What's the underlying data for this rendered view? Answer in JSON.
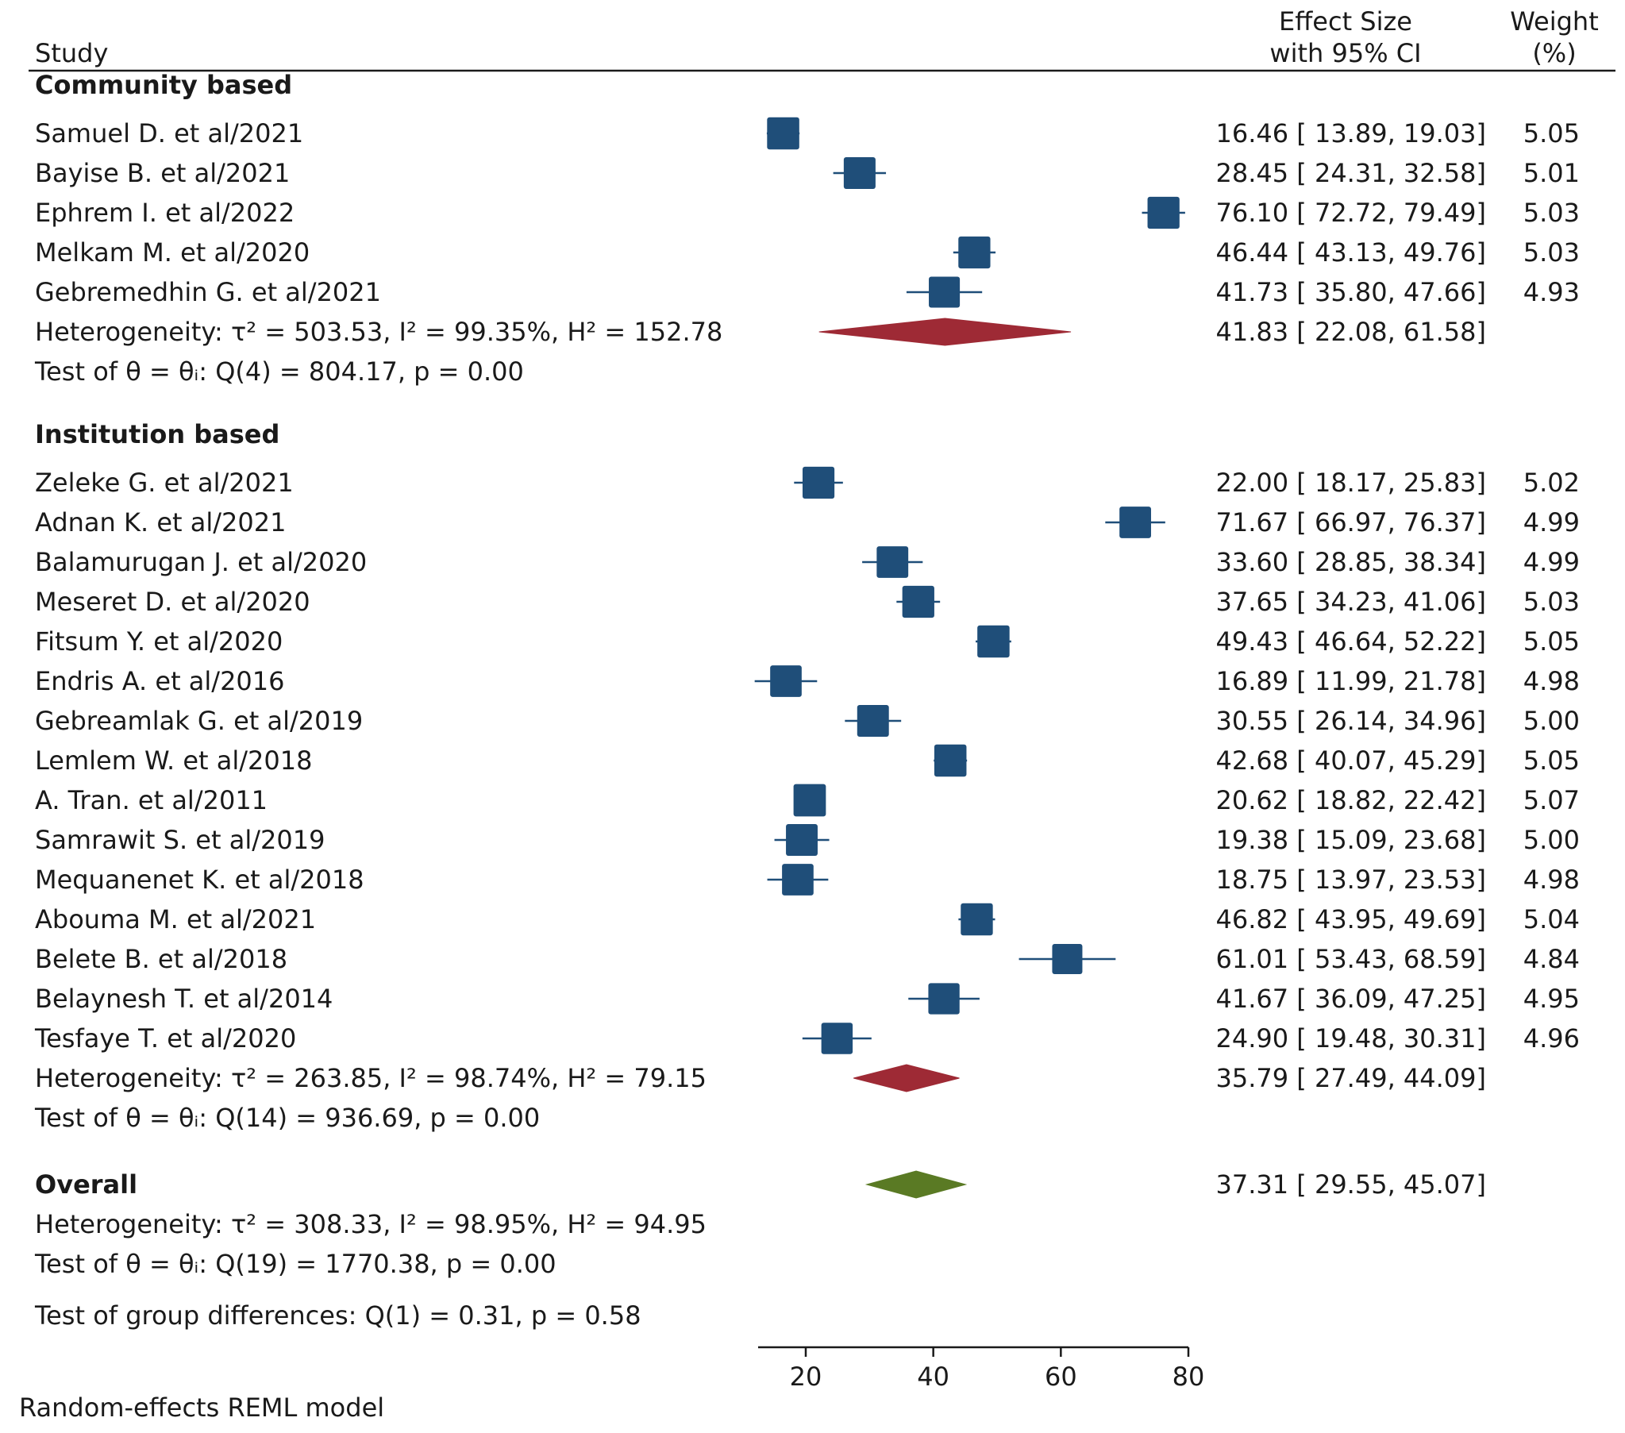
{
  "header": {
    "study": "Study",
    "effect_line1": "Effect Size",
    "effect_line2": "with 95% CI",
    "weight_line1": "Weight",
    "weight_line2": "(%)"
  },
  "colors": {
    "study_marker": "#1f4e79",
    "subgroup_diamond": "#9e2a35",
    "overall_diamond": "#5a7a24",
    "text": "#1a1a1a"
  },
  "footer": "Random-effects REML model",
  "chart_data": {
    "type": "forest",
    "xlim": [
      13,
      80
    ],
    "xticks": [
      20,
      40,
      60,
      80
    ],
    "groups": [
      {
        "name": "Community based",
        "studies": [
          {
            "study": "Samuel D. et al/2021",
            "es": 16.46,
            "lo": 13.89,
            "hi": 19.03,
            "weight": "5.05"
          },
          {
            "study": "Bayise B. et al/2021",
            "es": 28.45,
            "lo": 24.31,
            "hi": 32.58,
            "weight": "5.01"
          },
          {
            "study": "Ephrem I. et al/2022",
            "es": 76.1,
            "lo": 72.72,
            "hi": 79.49,
            "weight": "5.03"
          },
          {
            "study": "Melkam M. et al/2020",
            "es": 46.44,
            "lo": 43.13,
            "hi": 49.76,
            "weight": "5.03"
          },
          {
            "study": "Gebremedhin G. et al/2021",
            "es": 41.73,
            "lo": 35.8,
            "hi": 47.66,
            "weight": "4.93"
          }
        ],
        "pooled": {
          "es": 41.83,
          "lo": 22.08,
          "hi": 61.58
        },
        "heterogeneity": "Heterogeneity: τ² = 503.53, I² = 99.35%, H² = 152.78",
        "test": "Test of θ = θᵢ: Q(4) = 804.17, p = 0.00"
      },
      {
        "name": "Institution based",
        "studies": [
          {
            "study": "Zeleke G. et al/2021",
            "es": 22.0,
            "lo": 18.17,
            "hi": 25.83,
            "weight": "5.02"
          },
          {
            "study": "Adnan K. et al/2021",
            "es": 71.67,
            "lo": 66.97,
            "hi": 76.37,
            "weight": "4.99"
          },
          {
            "study": "Balamurugan J. et al/2020",
            "es": 33.6,
            "lo": 28.85,
            "hi": 38.34,
            "weight": "4.99"
          },
          {
            "study": "Meseret D. et al/2020",
            "es": 37.65,
            "lo": 34.23,
            "hi": 41.06,
            "weight": "5.03"
          },
          {
            "study": "Fitsum Y. et al/2020",
            "es": 49.43,
            "lo": 46.64,
            "hi": 52.22,
            "weight": "5.05"
          },
          {
            "study": "Endris A. et al/2016",
            "es": 16.89,
            "lo": 11.99,
            "hi": 21.78,
            "weight": "4.98"
          },
          {
            "study": "Gebreamlak G. et al/2019",
            "es": 30.55,
            "lo": 26.14,
            "hi": 34.96,
            "weight": "5.00"
          },
          {
            "study": "Lemlem W. et al/2018",
            "es": 42.68,
            "lo": 40.07,
            "hi": 45.29,
            "weight": "5.05"
          },
          {
            "study": "A. Tran. et al/2011",
            "es": 20.62,
            "lo": 18.82,
            "hi": 22.42,
            "weight": "5.07"
          },
          {
            "study": "Samrawit S. et al/2019",
            "es": 19.38,
            "lo": 15.09,
            "hi": 23.68,
            "weight": "5.00"
          },
          {
            "study": "Mequanenet K. et al/2018",
            "es": 18.75,
            "lo": 13.97,
            "hi": 23.53,
            "weight": "4.98"
          },
          {
            "study": "Abouma M. et al/2021",
            "es": 46.82,
            "lo": 43.95,
            "hi": 49.69,
            "weight": "5.04"
          },
          {
            "study": "Belete B. et al/2018",
            "es": 61.01,
            "lo": 53.43,
            "hi": 68.59,
            "weight": "4.84"
          },
          {
            "study": "Belaynesh T. et al/2014",
            "es": 41.67,
            "lo": 36.09,
            "hi": 47.25,
            "weight": "4.95"
          },
          {
            "study": "Tesfaye T. et al/2020",
            "es": 24.9,
            "lo": 19.48,
            "hi": 30.31,
            "weight": "4.96"
          }
        ],
        "pooled": {
          "es": 35.79,
          "lo": 27.49,
          "hi": 44.09
        },
        "heterogeneity": "Heterogeneity: τ² = 263.85, I² = 98.74%, H² = 79.15",
        "test": "Test of θ = θᵢ: Q(14) = 936.69, p = 0.00"
      }
    ],
    "overall": {
      "label": "Overall",
      "es": 37.31,
      "lo": 29.55,
      "hi": 45.07,
      "heterogeneity": "Heterogeneity: τ² = 308.33, I² = 98.95%, H² = 94.95",
      "test": "Test of θ = θᵢ: Q(19) = 1770.38, p = 0.00"
    },
    "group_difference_test": "Test of group differences: Q(1) = 0.31, p = 0.58"
  }
}
